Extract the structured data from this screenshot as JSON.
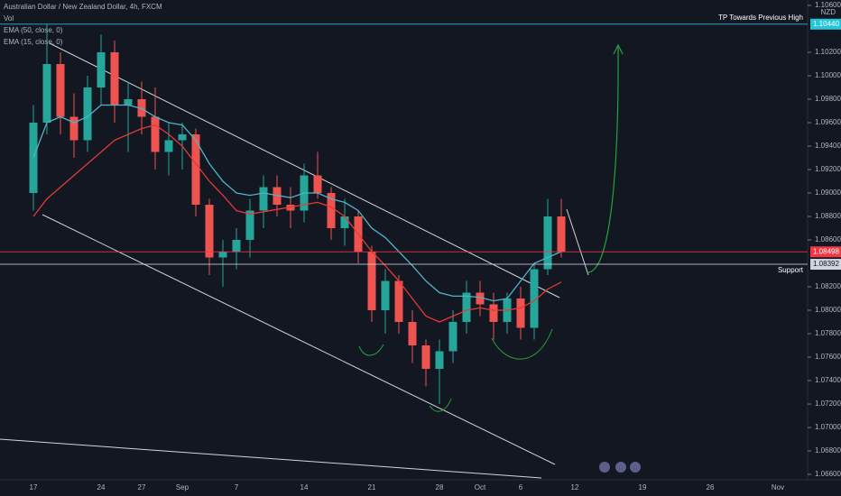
{
  "chart_data": {
    "type": "candlestick",
    "title": "Australian Dollar / New Zealand Dollar, 4h, FXCM",
    "indicators": [
      "Vol",
      "EMA (50, close, 0)",
      "EMA (15, close, 0)"
    ],
    "currency": "NZD",
    "categories": [
      "17",
      null,
      null,
      null,
      null,
      "24",
      null,
      null,
      "27",
      null,
      null,
      "Sep",
      null,
      null,
      null,
      "7",
      null,
      null,
      null,
      null,
      "14",
      null,
      null,
      null,
      null,
      "21",
      null,
      null,
      null,
      null,
      "28",
      null,
      null,
      "Oct",
      null,
      null,
      "6",
      null,
      null,
      null,
      "12",
      null,
      null,
      null,
      null,
      "19",
      null,
      null,
      null,
      null,
      "26",
      null,
      null,
      null,
      null,
      "Nov"
    ],
    "open": [
      1.09,
      1.096,
      1.101,
      1.0965,
      1.0945,
      1.099,
      1.102,
      1.0975,
      1.098,
      1.0965,
      1.0935,
      1.0945,
      1.095,
      1.089,
      1.0845,
      1.085,
      1.086,
      1.0885,
      1.0905,
      1.089,
      1.0885,
      1.0915,
      1.09,
      1.087,
      1.088,
      1.085,
      1.08,
      1.0825,
      1.079,
      1.077,
      1.075,
      1.0765,
      1.079,
      1.0815,
      1.0805,
      1.079,
      1.081,
      1.0785,
      1.0835,
      1.088,
      null,
      null,
      null,
      null,
      null,
      null,
      null,
      null,
      null,
      null,
      null,
      null,
      null,
      null,
      null,
      null
    ],
    "high": [
      1.0975,
      1.1044,
      1.102,
      1.0985,
      1.1,
      1.1035,
      1.103,
      1.0995,
      1.0995,
      1.099,
      1.096,
      1.096,
      1.0955,
      1.0895,
      1.086,
      1.087,
      1.0895,
      1.0915,
      1.0915,
      1.0905,
      1.0925,
      1.0935,
      1.0905,
      1.0895,
      1.0885,
      1.0855,
      1.0835,
      1.083,
      1.08,
      1.0775,
      1.0775,
      1.08,
      1.0825,
      1.0825,
      1.0815,
      1.0815,
      1.082,
      1.084,
      1.0895,
      1.0895,
      null,
      null,
      null,
      null,
      null,
      null,
      null,
      null,
      null,
      null,
      null,
      null,
      null,
      null,
      null,
      null
    ],
    "low": [
      1.0885,
      1.095,
      1.095,
      1.093,
      1.0935,
      1.0975,
      1.096,
      1.0935,
      1.095,
      1.092,
      1.0915,
      1.092,
      1.088,
      1.083,
      1.082,
      1.0835,
      1.0845,
      1.087,
      1.088,
      1.087,
      1.0875,
      1.0895,
      1.086,
      1.0855,
      1.084,
      1.079,
      1.078,
      1.078,
      1.0755,
      1.0735,
      1.072,
      1.0755,
      1.078,
      1.0795,
      1.0775,
      1.078,
      1.0775,
      1.0775,
      1.083,
      1.0845,
      null,
      null,
      null,
      null,
      null,
      null,
      null,
      null,
      null,
      null,
      null,
      null,
      null,
      null,
      null,
      null
    ],
    "close": [
      1.096,
      1.101,
      1.0965,
      1.0945,
      1.099,
      1.102,
      1.0975,
      1.098,
      1.0965,
      1.0935,
      1.0945,
      1.095,
      1.089,
      1.0845,
      1.085,
      1.086,
      1.0885,
      1.0905,
      1.089,
      1.0885,
      1.0915,
      1.09,
      1.087,
      1.088,
      1.085,
      1.08,
      1.0825,
      1.079,
      1.077,
      1.075,
      1.0765,
      1.079,
      1.0815,
      1.0805,
      1.079,
      1.081,
      1.0785,
      1.0835,
      1.088,
      1.085,
      null,
      null,
      null,
      null,
      null,
      null,
      null,
      null,
      null,
      null,
      null,
      null,
      null,
      null,
      null,
      null
    ],
    "up_color": "#26a69a",
    "down_color": "#ef5350",
    "series": [
      {
        "name": "EMA (50, close, 0)",
        "color": "#e53935",
        "values": [
          1.088,
          1.0895,
          1.0905,
          1.0915,
          1.0925,
          1.0935,
          1.0945,
          1.095,
          1.0955,
          1.0958,
          1.095,
          1.094,
          1.0925,
          1.091,
          1.0898,
          1.0885,
          1.0882,
          1.0884,
          1.0886,
          1.0888,
          1.089,
          1.0892,
          1.0888,
          1.088,
          1.0865,
          1.085,
          1.0838,
          1.0825,
          1.081,
          1.0795,
          1.079,
          1.0795,
          1.08,
          1.0802,
          1.08,
          1.08,
          1.0802,
          1.0808,
          1.0818,
          1.0824,
          null,
          null,
          null,
          null,
          null,
          null,
          null,
          null,
          null,
          null,
          null,
          null,
          null,
          null,
          null,
          null
        ]
      },
      {
        "name": "EMA (15, close, 0)",
        "color": "#4fb3c9",
        "values": [
          1.093,
          1.096,
          1.0965,
          1.096,
          1.0965,
          1.0975,
          1.0975,
          1.0975,
          1.0972,
          1.0965,
          1.096,
          1.0958,
          1.0945,
          1.0925,
          1.091,
          1.09,
          1.0898,
          1.09,
          1.0898,
          1.0896,
          1.09,
          1.09,
          1.0895,
          1.0892,
          1.0885,
          1.087,
          1.0862,
          1.085,
          1.0838,
          1.0825,
          1.0815,
          1.0812,
          1.0812,
          1.0811,
          1.0808,
          1.081,
          1.0825,
          1.084,
          1.0845,
          1.085,
          null,
          null,
          null,
          null,
          null,
          null,
          null,
          null,
          null,
          null,
          null,
          null,
          null,
          null,
          null,
          null
        ]
      }
    ],
    "ylim": [
      1.06531,
      1.10646
    ],
    "yticks": [
      {
        "value": 1.066,
        "label": "1.06600"
      },
      {
        "value": 1.068,
        "label": "1.06800"
      },
      {
        "value": 1.07,
        "label": "1.07000"
      },
      {
        "value": 1.072,
        "label": "1.07200"
      },
      {
        "value": 1.074,
        "label": "1.07400"
      },
      {
        "value": 1.076,
        "label": "1.07600"
      },
      {
        "value": 1.078,
        "label": "1.07800"
      },
      {
        "value": 1.08,
        "label": "1.08000"
      },
      {
        "value": 1.082,
        "label": "1.08200"
      },
      {
        "value": 1.086,
        "label": "1.08600"
      },
      {
        "value": 1.088,
        "label": "1.08800"
      },
      {
        "value": 1.09,
        "label": "1.09000"
      },
      {
        "value": 1.092,
        "label": "1.09200"
      },
      {
        "value": 1.094,
        "label": "1.09400"
      },
      {
        "value": 1.096,
        "label": "1.09600"
      },
      {
        "value": 1.098,
        "label": "1.09800"
      },
      {
        "value": 1.1,
        "label": "1.10000"
      },
      {
        "value": 1.102,
        "label": "1.10200"
      },
      {
        "value": 1.106,
        "label": "1.10600"
      }
    ],
    "price_lines": [
      {
        "value": 1.1044,
        "label": "1.10440",
        "text": "TP Towards Previous High",
        "color": "#26c6da"
      },
      {
        "value": 1.08498,
        "label": "1.08498",
        "color": "#f23645"
      },
      {
        "value": 1.08392,
        "label": "1.08392",
        "text": "Support",
        "color": "#d1d4dc"
      }
    ]
  }
}
